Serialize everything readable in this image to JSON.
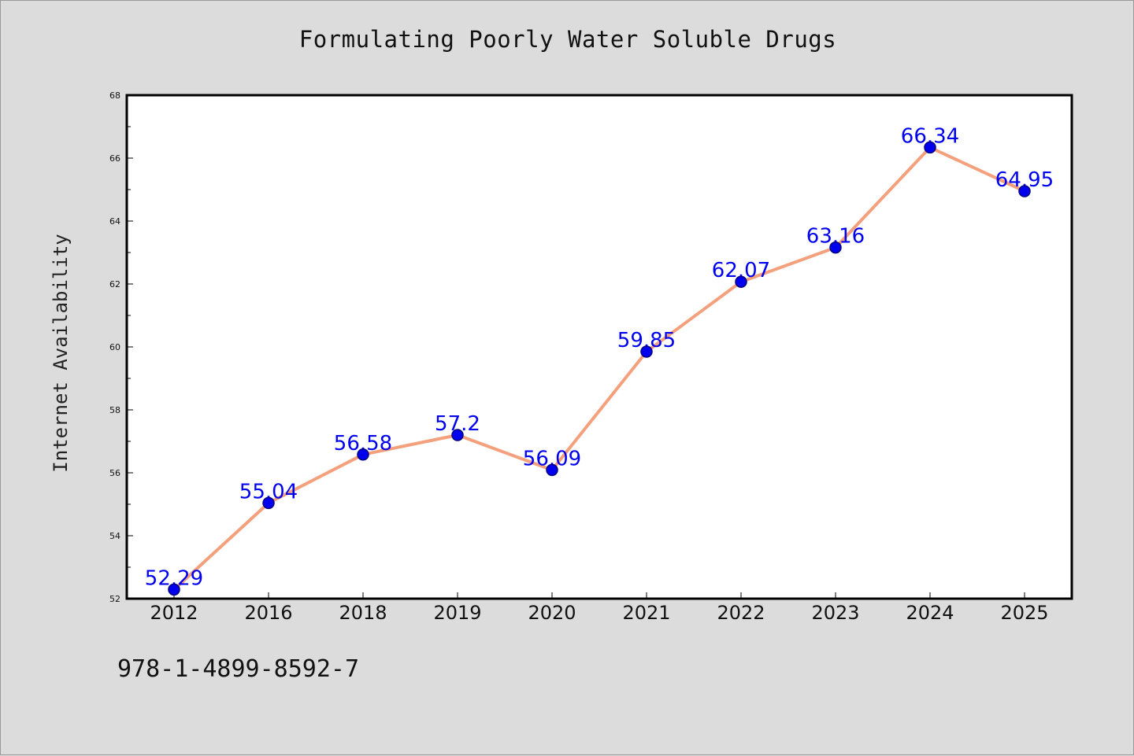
{
  "chart_data": {
    "type": "line",
    "title": "Formulating Poorly Water Soluble Drugs",
    "xlabel": "",
    "ylabel": "Internet Availability",
    "categories": [
      "2012",
      "2016",
      "2018",
      "2019",
      "2020",
      "2021",
      "2022",
      "2023",
      "2024",
      "2025"
    ],
    "values": [
      52.29,
      55.04,
      56.58,
      57.2,
      56.09,
      59.85,
      62.07,
      63.16,
      66.34,
      64.95
    ],
    "data_labels": [
      "52.29",
      "55.04",
      "56.58",
      "57.2",
      "56.09",
      "59.85",
      "62.07",
      "63.16",
      "66.34",
      "64.95"
    ],
    "ylim": [
      52,
      68
    ],
    "yticks": [
      "52",
      "54",
      "56",
      "58",
      "60",
      "62",
      "64",
      "66",
      "68"
    ],
    "grid": false,
    "legend": "none",
    "colors": {
      "line": "#f4a07c",
      "marker": "#0000ee",
      "marker_edge": "#000080",
      "label": "#0000ee",
      "background": "#dcdcdc",
      "plot_background": "#ffffff"
    }
  },
  "footer": {
    "isbn": "978-1-4899-8592-7"
  }
}
